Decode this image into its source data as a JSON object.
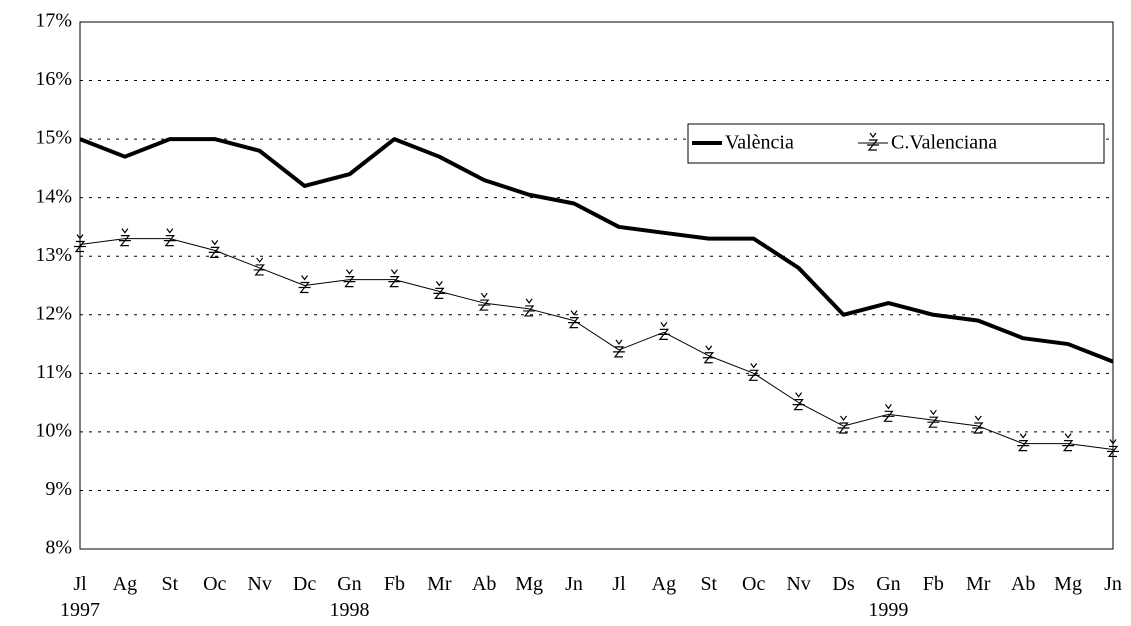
{
  "chart_data": {
    "type": "line",
    "categories": [
      "Jl\n1997",
      "Ag",
      "St",
      "Oc",
      "Nv",
      "Dc",
      "Gn\n1998",
      "Fb",
      "Mr",
      "Ab",
      "Mg",
      "Jn",
      "Jl",
      "Ag",
      "St",
      "Oc",
      "Nv",
      "Ds",
      "Gn\n1999",
      "Fb",
      "Mr",
      "Ab",
      "Mg",
      "Jn"
    ],
    "series": [
      {
        "name": "València",
        "color": "#000000",
        "width": 4,
        "marker": "none",
        "values": [
          15.0,
          14.7,
          15.0,
          15.0,
          14.8,
          14.2,
          14.4,
          15.0,
          14.7,
          14.3,
          14.05,
          13.9,
          13.5,
          13.4,
          13.3,
          13.3,
          12.8,
          12.0,
          12.2,
          12.0,
          11.9,
          11.6,
          11.5,
          11.2
        ]
      },
      {
        "name": "C.Valenciana",
        "color": "#000000",
        "width": 1,
        "marker": "z-caron",
        "values": [
          13.2,
          13.3,
          13.3,
          13.1,
          12.8,
          12.5,
          12.6,
          12.6,
          12.4,
          12.2,
          12.1,
          11.9,
          11.4,
          11.7,
          11.3,
          11.0,
          10.5,
          10.1,
          10.3,
          10.2,
          10.1,
          9.8,
          9.8,
          9.7
        ]
      }
    ],
    "ylim": [
      8,
      17
    ],
    "yticks": [
      {
        "value": 8,
        "label": "8%"
      },
      {
        "value": 9,
        "label": "9%"
      },
      {
        "value": 10,
        "label": "10%"
      },
      {
        "value": 11,
        "label": "11%"
      },
      {
        "value": 12,
        "label": "12%"
      },
      {
        "value": 13,
        "label": "13%"
      },
      {
        "value": 14,
        "label": "14%"
      },
      {
        "value": 15,
        "label": "15%"
      },
      {
        "value": 16,
        "label": "16%"
      },
      {
        "value": 17,
        "label": "17%"
      }
    ],
    "grid": true,
    "legend": "top-right"
  }
}
